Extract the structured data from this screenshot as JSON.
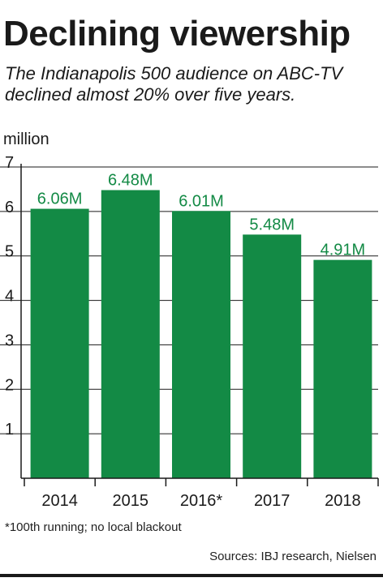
{
  "title": "Declining viewership",
  "subtitle": "The Indianapolis 500 audience on ABC-TV declined almost 20% over five years.",
  "footnote": "*100th running; no local blackout",
  "sources": "Sources: IBJ research, Nielsen",
  "colors": {
    "bar": "#138a45",
    "bar_label": "#138a45",
    "axis": "#1a1a1a",
    "grid": "#1a1a1a"
  },
  "chart_data": {
    "type": "bar",
    "title": "Declining viewership",
    "ylabel": "million",
    "xlabel": "",
    "categories": [
      "2014",
      "2015",
      "2016*",
      "2017",
      "2018"
    ],
    "values": [
      6.06,
      6.48,
      6.01,
      5.48,
      4.91
    ],
    "data_labels": [
      "6.06M",
      "6.48M",
      "6.01M",
      "5.48M",
      "4.91M"
    ],
    "ylim": [
      0,
      7
    ],
    "yticks": [
      1,
      2,
      3,
      4,
      5,
      6,
      7
    ],
    "grid": true,
    "legend": "none"
  }
}
